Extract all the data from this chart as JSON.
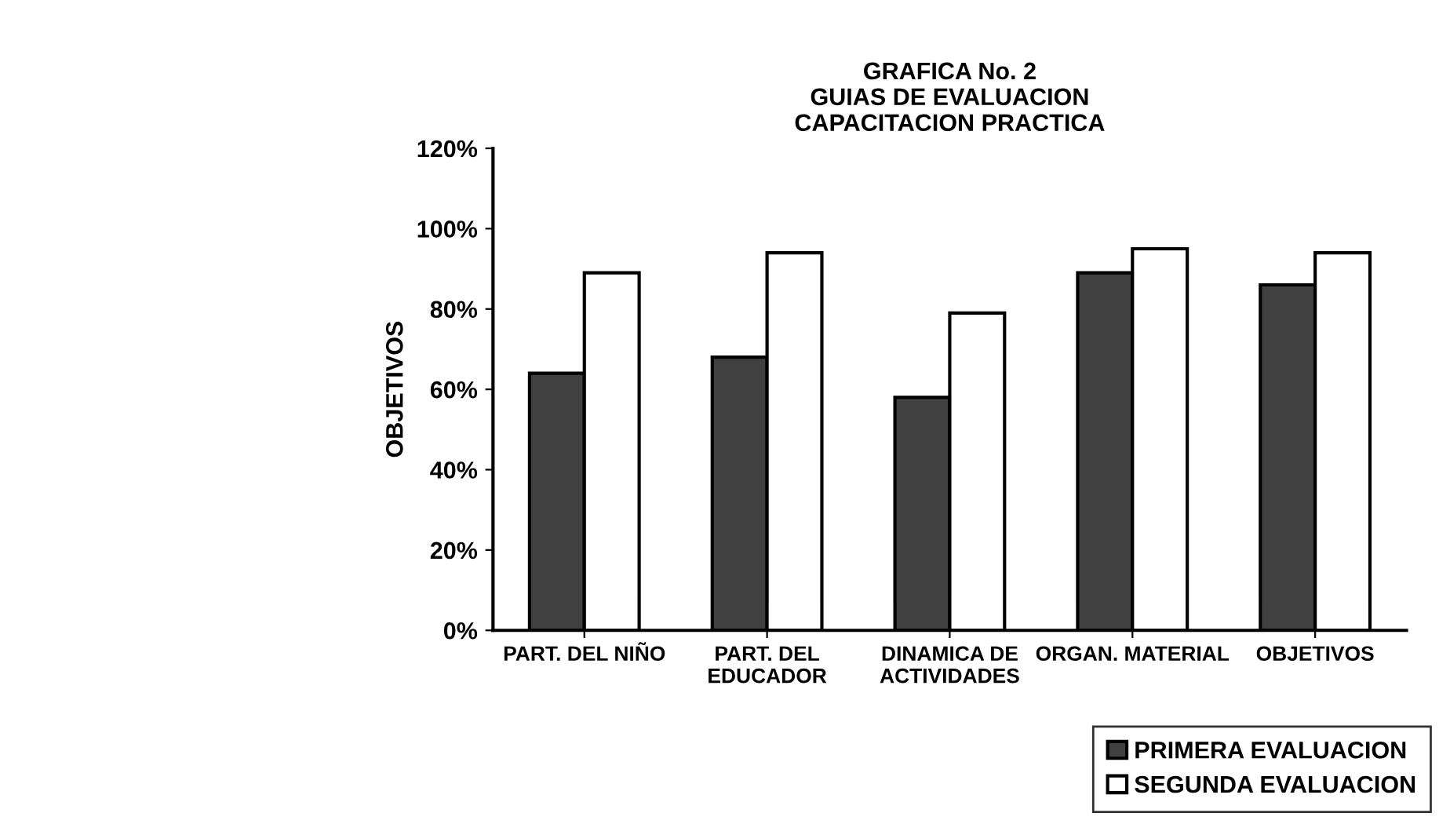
{
  "chart_data": {
    "type": "bar",
    "title": "GRAFICA No. 2\nGUIAS DE EVALUACION\nCAPACITACION PRACTICA",
    "ylabel": "OBJETIVOS",
    "categories": [
      "PART. DEL NIÑO",
      "PART. DEL\nEDUCADOR",
      "DINAMICA DE\nACTIVIDADES",
      "ORGAN. MATERIAL",
      "OBJETIVOS"
    ],
    "series": [
      {
        "name": "PRIMERA EVALUACION",
        "color": "#404040",
        "values": [
          64,
          68,
          58,
          89,
          86
        ]
      },
      {
        "name": "SEGUNDA EVALUACION",
        "color": "#ffffff",
        "values": [
          89,
          94,
          79,
          95,
          94
        ]
      }
    ],
    "ylim": [
      0,
      120
    ],
    "yticks": [
      {
        "value": 0,
        "label": "0%"
      },
      {
        "value": 20,
        "label": "20%"
      },
      {
        "value": 40,
        "label": "40%"
      },
      {
        "value": 60,
        "label": "60%"
      },
      {
        "value": 80,
        "label": "80%"
      },
      {
        "value": 100,
        "label": "100%"
      },
      {
        "value": 120,
        "label": "120%"
      }
    ],
    "grid": false,
    "legend": "bottom right"
  }
}
